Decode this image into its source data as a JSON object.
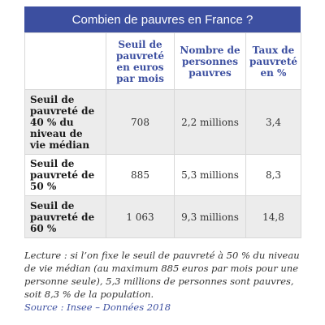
{
  "title": "Combien de pauvres en France ?",
  "table": {
    "columns": [
      "Seuil de pauvreté en euros par mois",
      "Nombre de personnes pauvres",
      "Taux de pauvreté en %"
    ],
    "rows": [
      {
        "label": "Seuil de pauvreté de 40 % du niveau de vie médian",
        "cells": [
          "708",
          "2,2 millions",
          "3,4"
        ]
      },
      {
        "label": "Seuil de pauvreté de 50 %",
        "cells": [
          "885",
          "5,3 millions",
          "8,3"
        ]
      },
      {
        "label": "Seuil de pauvreté de 60 %",
        "cells": [
          "1 063",
          "9,3 millions",
          "14,8"
        ]
      }
    ]
  },
  "note": "Lecture : si l’on fixe le seuil de pauvreté à 50 % du niveau de vie médian (au maximum 885 euros par mois pour une personne seule), 5,3 millions de personnes sont pauvres, soit 8,3 % de la population.",
  "source": "Source : Insee – Données 2018",
  "colors": {
    "accent": "#3c4fa0",
    "row_shade": "#ececec"
  }
}
